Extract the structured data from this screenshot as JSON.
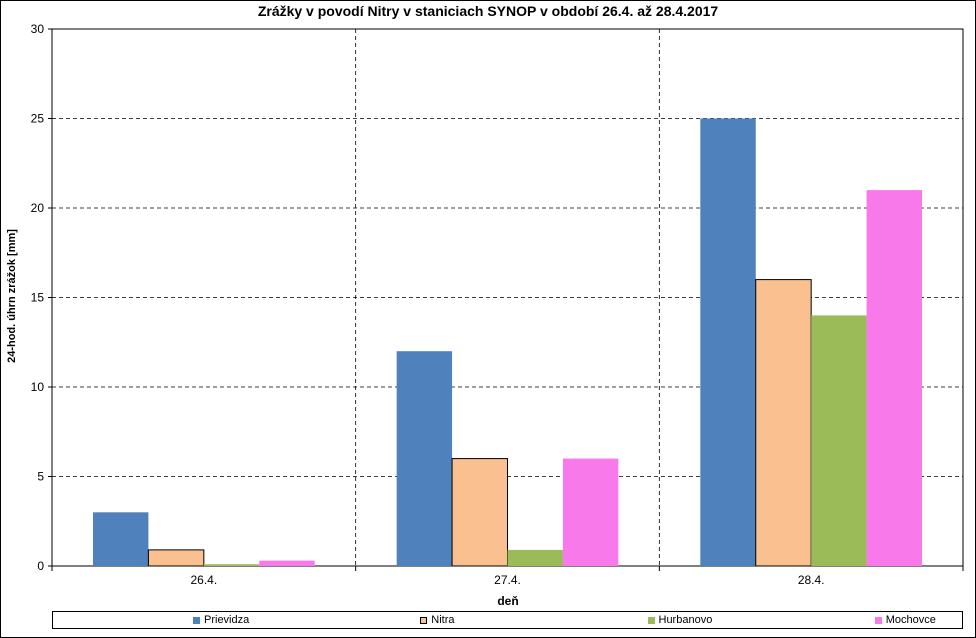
{
  "chart_data": {
    "type": "bar",
    "title": "Zrážky v povodí Nitry v staniciach SYNOP v období 26.4.  až 28.4.2017",
    "xlabel": "deň",
    "ylabel": "24-hod. úhrn zrážok [mm]",
    "categories": [
      "26.4.",
      "27.4.",
      "28.4."
    ],
    "ylim": [
      0,
      30
    ],
    "yticks": [
      "0",
      "5",
      "10",
      "15",
      "20",
      "25",
      "30"
    ],
    "grid": true,
    "legend_position": "bottom",
    "series": [
      {
        "name": "Prievidza",
        "color": "#4F81BD",
        "values": [
          3.0,
          12.0,
          25.0
        ]
      },
      {
        "name": "Nitra",
        "color": "#FAC090",
        "values": [
          0.9,
          6.0,
          16.0
        ]
      },
      {
        "name": "Hurbanovo",
        "color": "#9BBB59",
        "values": [
          0.1,
          0.9,
          14.0
        ]
      },
      {
        "name": "Mochovce",
        "color": "#F779EA",
        "values": [
          0.3,
          6.0,
          21.0
        ]
      }
    ]
  }
}
